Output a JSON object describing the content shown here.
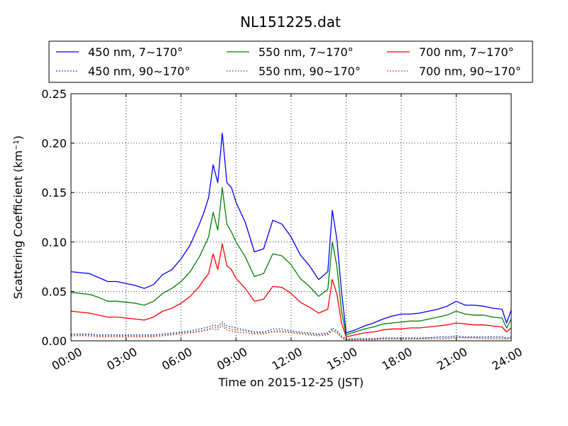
{
  "chart_data": {
    "type": "line",
    "title": "NL151225.dat",
    "xlabel": "Time on 2015-12-25 (JST)",
    "ylabel_main": "Scattering Coefficient (km",
    "ylabel_sup": "−1",
    "ylabel_end": ")",
    "xlim_hours": [
      0,
      24
    ],
    "ylim": [
      0,
      0.25
    ],
    "x_ticks": [
      {
        "hour": 0,
        "label": "00:00"
      },
      {
        "hour": 3,
        "label": "03:00"
      },
      {
        "hour": 6,
        "label": "06:00"
      },
      {
        "hour": 9,
        "label": "09:00"
      },
      {
        "hour": 12,
        "label": "12:00"
      },
      {
        "hour": 15,
        "label": "15:00"
      },
      {
        "hour": 18,
        "label": "18:00"
      },
      {
        "hour": 21,
        "label": "21:00"
      },
      {
        "hour": 24,
        "label": "24:00"
      }
    ],
    "y_ticks": [
      {
        "value": 0.0,
        "label": "0.00"
      },
      {
        "value": 0.05,
        "label": "0.05"
      },
      {
        "value": 0.1,
        "label": "0.10"
      },
      {
        "value": 0.15,
        "label": "0.15"
      },
      {
        "value": 0.2,
        "label": "0.20"
      },
      {
        "value": 0.25,
        "label": "0.25"
      }
    ],
    "grid": true,
    "legend_position": "top, above plot, 3 columns",
    "x_hours": [
      0,
      0.5,
      1,
      1.5,
      2,
      2.5,
      3,
      3.5,
      4,
      4.5,
      5,
      5.5,
      6,
      6.5,
      7,
      7.25,
      7.5,
      7.75,
      8,
      8.25,
      8.5,
      8.75,
      9,
      9.5,
      10,
      10.5,
      11,
      11.5,
      12,
      12.5,
      13,
      13.5,
      14,
      14.25,
      14.5,
      14.75,
      15,
      15.5,
      16,
      16.5,
      17,
      17.5,
      18,
      18.5,
      19,
      19.5,
      20,
      20.5,
      21,
      21.5,
      22,
      22.5,
      23,
      23.5,
      23.75,
      24
    ],
    "series": [
      {
        "name": "450 nm, 7∼170°",
        "color": "#0000ff",
        "style": "solid",
        "values": [
          0.07,
          0.069,
          0.068,
          0.064,
          0.06,
          0.06,
          0.058,
          0.056,
          0.053,
          0.057,
          0.067,
          0.072,
          0.083,
          0.097,
          0.118,
          0.13,
          0.145,
          0.178,
          0.16,
          0.21,
          0.16,
          0.155,
          0.14,
          0.12,
          0.09,
          0.093,
          0.122,
          0.118,
          0.105,
          0.087,
          0.076,
          0.062,
          0.07,
          0.132,
          0.102,
          0.05,
          0.008,
          0.011,
          0.015,
          0.018,
          0.022,
          0.025,
          0.027,
          0.027,
          0.028,
          0.03,
          0.032,
          0.035,
          0.04,
          0.036,
          0.036,
          0.035,
          0.033,
          0.032,
          0.018,
          0.031
        ]
      },
      {
        "name": "550 nm, 7∼170°",
        "color": "#008000",
        "style": "solid",
        "values": [
          0.049,
          0.048,
          0.047,
          0.044,
          0.04,
          0.04,
          0.039,
          0.038,
          0.036,
          0.04,
          0.048,
          0.053,
          0.06,
          0.07,
          0.085,
          0.095,
          0.105,
          0.13,
          0.112,
          0.155,
          0.118,
          0.11,
          0.1,
          0.085,
          0.065,
          0.068,
          0.088,
          0.086,
          0.077,
          0.063,
          0.055,
          0.045,
          0.052,
          0.1,
          0.075,
          0.03,
          0.006,
          0.009,
          0.012,
          0.014,
          0.017,
          0.018,
          0.019,
          0.02,
          0.02,
          0.022,
          0.024,
          0.026,
          0.03,
          0.027,
          0.026,
          0.026,
          0.024,
          0.023,
          0.013,
          0.022
        ]
      },
      {
        "name": "700 nm, 7∼170°",
        "color": "#ff0000",
        "style": "solid",
        "values": [
          0.03,
          0.029,
          0.028,
          0.026,
          0.024,
          0.024,
          0.023,
          0.022,
          0.021,
          0.024,
          0.03,
          0.033,
          0.038,
          0.045,
          0.055,
          0.062,
          0.068,
          0.088,
          0.072,
          0.098,
          0.076,
          0.072,
          0.063,
          0.053,
          0.04,
          0.042,
          0.055,
          0.054,
          0.048,
          0.039,
          0.034,
          0.028,
          0.032,
          0.062,
          0.047,
          0.018,
          0.004,
          0.006,
          0.008,
          0.009,
          0.011,
          0.012,
          0.012,
          0.013,
          0.013,
          0.014,
          0.015,
          0.016,
          0.018,
          0.017,
          0.016,
          0.016,
          0.015,
          0.014,
          0.009,
          0.013
        ]
      },
      {
        "name": "450 nm, 90∼170°",
        "color": "#0000ff",
        "style": "dotted",
        "values": [
          0.007,
          0.007,
          0.007,
          0.006,
          0.006,
          0.006,
          0.006,
          0.006,
          0.006,
          0.006,
          0.007,
          0.008,
          0.009,
          0.01,
          0.012,
          0.013,
          0.014,
          0.016,
          0.015,
          0.019,
          0.015,
          0.014,
          0.013,
          0.011,
          0.009,
          0.009,
          0.012,
          0.012,
          0.01,
          0.009,
          0.008,
          0.007,
          0.008,
          0.013,
          0.01,
          0.005,
          0.002,
          0.002,
          0.002,
          0.002,
          0.003,
          0.003,
          0.003,
          0.003,
          0.003,
          0.003,
          0.004,
          0.004,
          0.005,
          0.004,
          0.004,
          0.004,
          0.004,
          0.004,
          0.003,
          0.004
        ]
      },
      {
        "name": "550 nm, 90∼170°",
        "color": "#008000",
        "style": "dotted",
        "values": [
          0.006,
          0.006,
          0.006,
          0.005,
          0.005,
          0.005,
          0.005,
          0.005,
          0.005,
          0.005,
          0.006,
          0.007,
          0.008,
          0.009,
          0.01,
          0.011,
          0.012,
          0.014,
          0.013,
          0.017,
          0.013,
          0.012,
          0.011,
          0.01,
          0.008,
          0.008,
          0.01,
          0.01,
          0.009,
          0.008,
          0.007,
          0.006,
          0.007,
          0.011,
          0.009,
          0.004,
          0.001,
          0.002,
          0.002,
          0.002,
          0.002,
          0.002,
          0.002,
          0.002,
          0.002,
          0.003,
          0.003,
          0.003,
          0.004,
          0.003,
          0.003,
          0.003,
          0.003,
          0.003,
          0.002,
          0.003
        ]
      },
      {
        "name": "700 nm, 90∼170°",
        "color": "#ff0000",
        "style": "dotted",
        "values": [
          0.005,
          0.005,
          0.005,
          0.004,
          0.004,
          0.004,
          0.004,
          0.004,
          0.004,
          0.004,
          0.005,
          0.006,
          0.007,
          0.008,
          0.009,
          0.01,
          0.011,
          0.012,
          0.011,
          0.015,
          0.011,
          0.01,
          0.009,
          0.008,
          0.007,
          0.007,
          0.009,
          0.009,
          0.008,
          0.007,
          0.006,
          0.005,
          0.006,
          0.01,
          0.008,
          0.003,
          0.001,
          0.001,
          0.001,
          0.001,
          0.002,
          0.002,
          0.002,
          0.002,
          0.002,
          0.002,
          0.002,
          0.002,
          0.003,
          0.003,
          0.003,
          0.002,
          0.002,
          0.002,
          0.002,
          0.002
        ]
      }
    ]
  }
}
